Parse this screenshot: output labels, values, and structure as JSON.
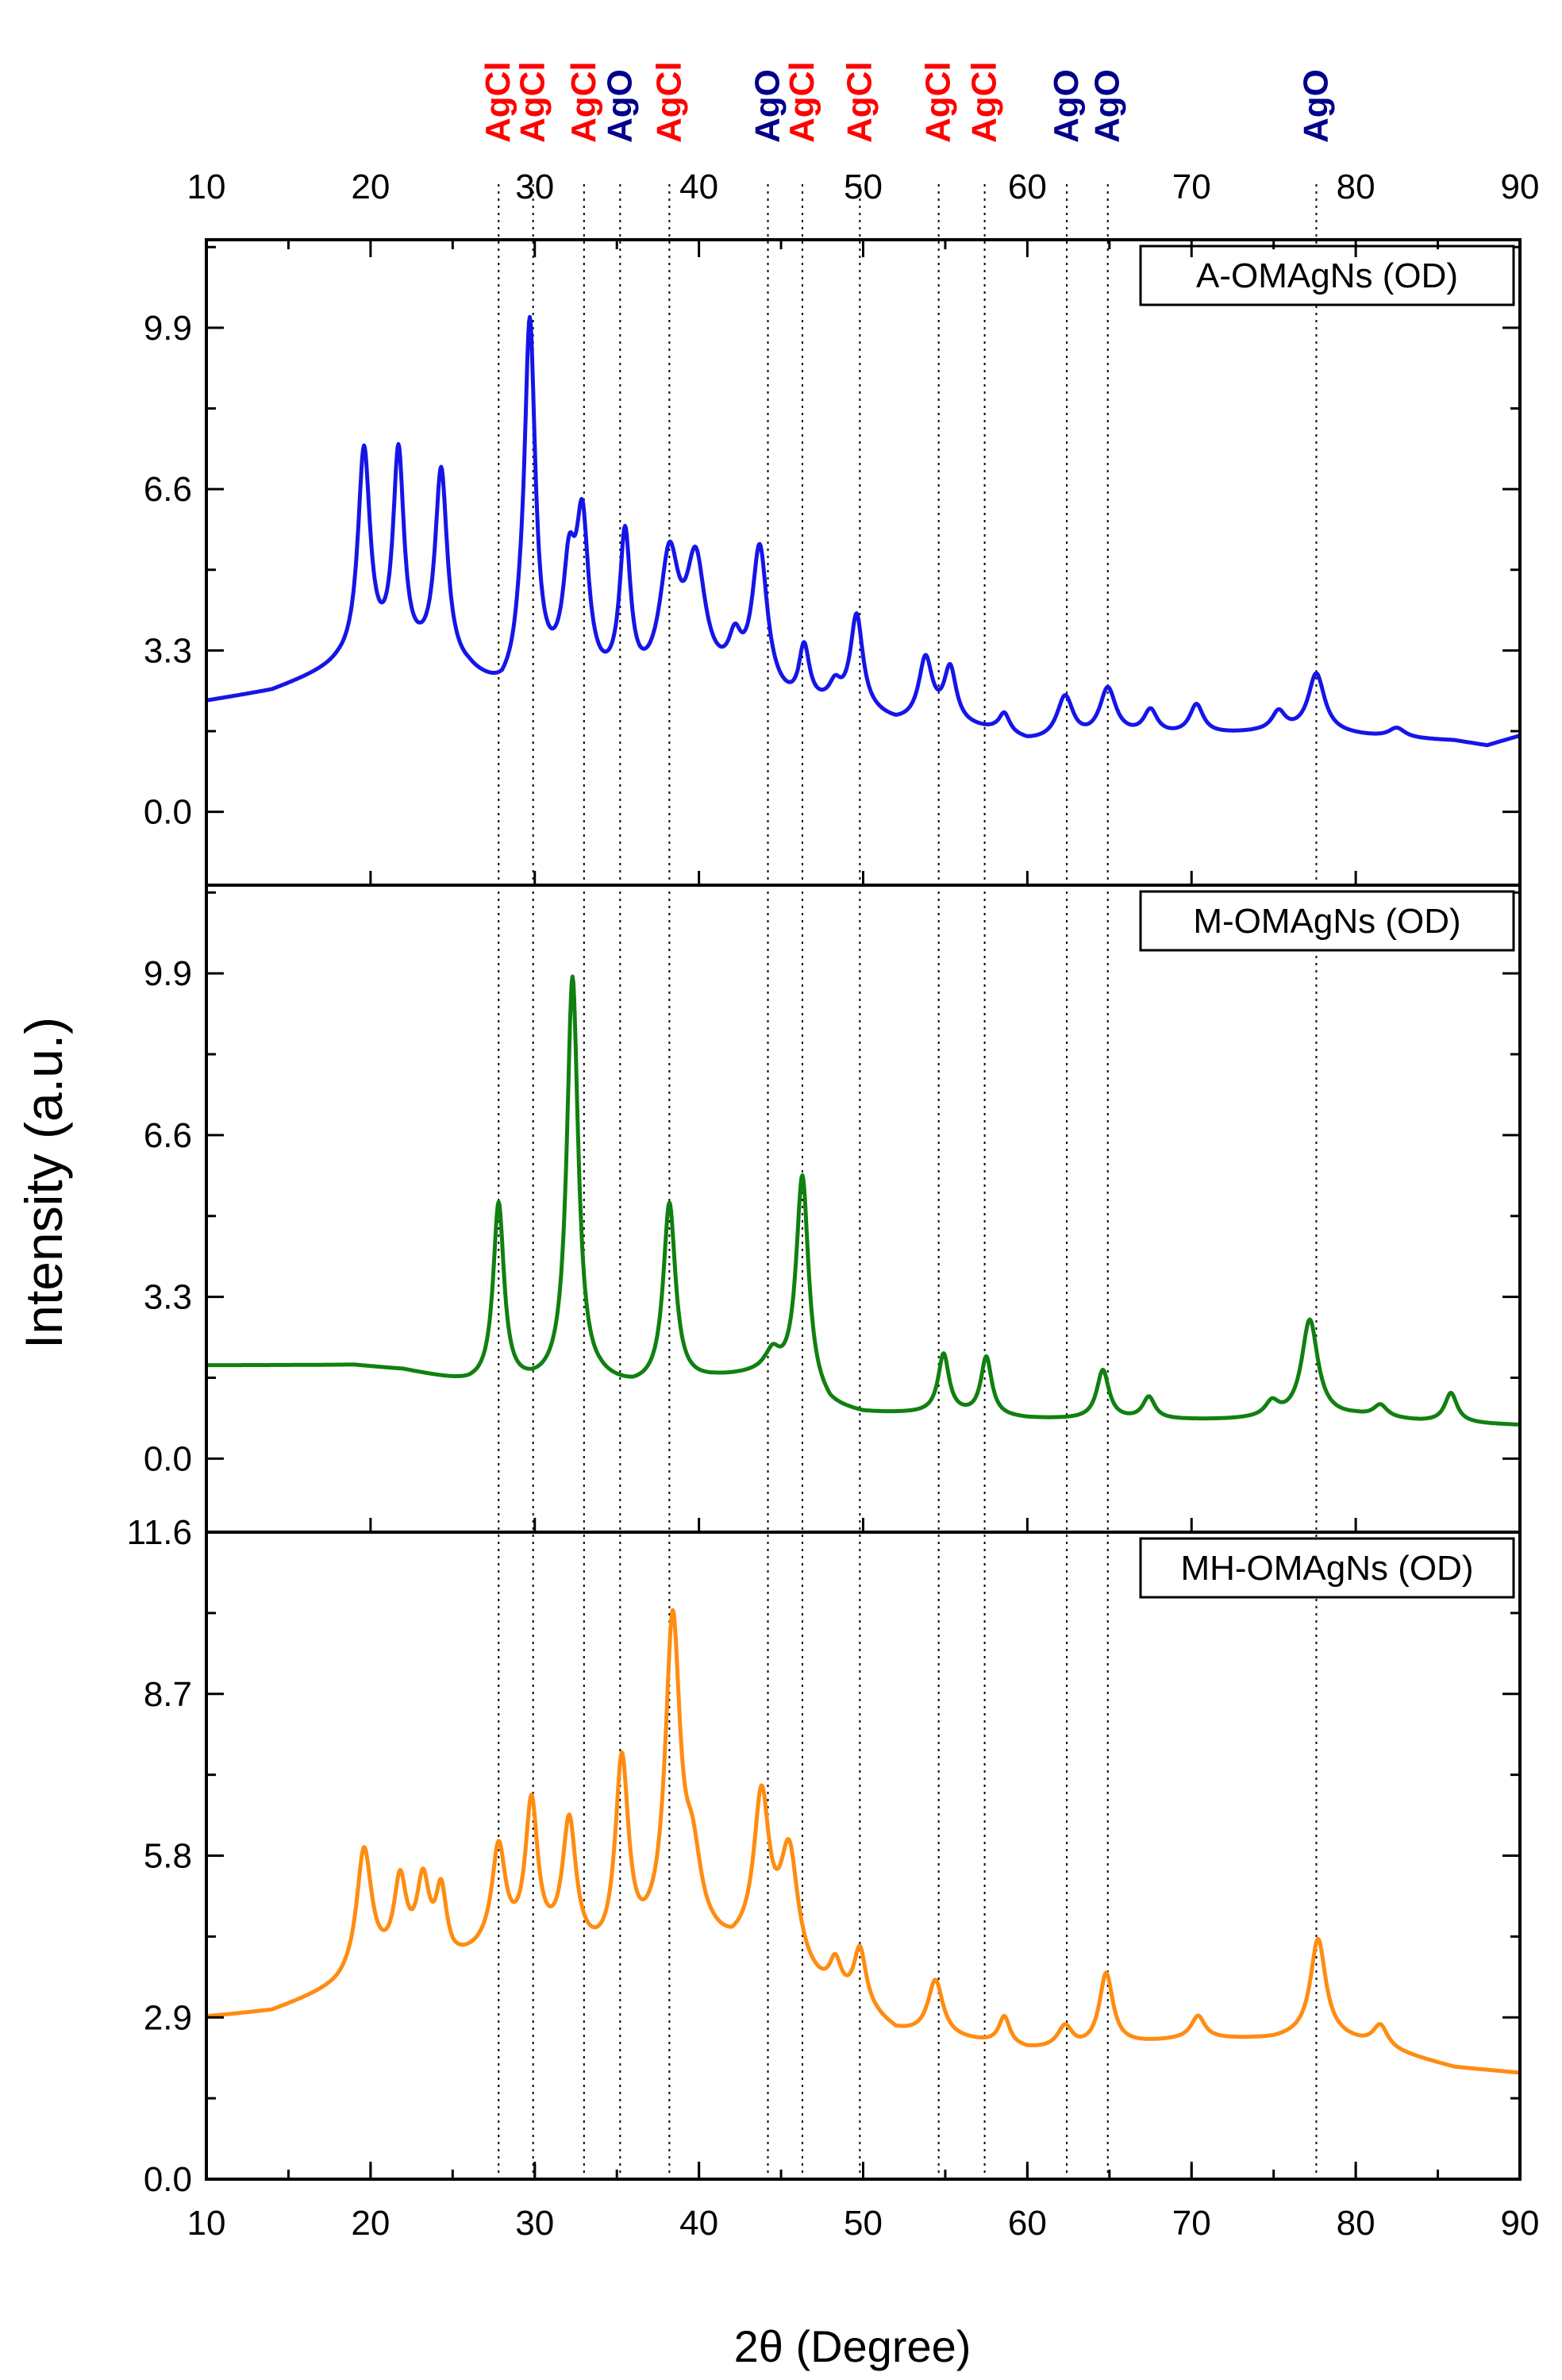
{
  "chart_data": {
    "type": "line",
    "xlabel": "2θ (Degree)",
    "ylabel": "Intensity (a.u.)",
    "xlim": [
      10,
      90
    ],
    "x_ticks": [
      10,
      20,
      30,
      40,
      50,
      60,
      70,
      80,
      90
    ],
    "reference_lines": [
      {
        "x": 27.8,
        "phase": "AgCl"
      },
      {
        "x": 29.9,
        "phase": "AgCl"
      },
      {
        "x": 33.0,
        "phase": "AgCl"
      },
      {
        "x": 35.2,
        "phase": "AgO"
      },
      {
        "x": 38.2,
        "phase": "AgCl"
      },
      {
        "x": 44.2,
        "phase": "AgO"
      },
      {
        "x": 46.3,
        "phase": "AgCl"
      },
      {
        "x": 49.8,
        "phase": "AgCl"
      },
      {
        "x": 54.6,
        "phase": "AgCl"
      },
      {
        "x": 57.4,
        "phase": "AgCl"
      },
      {
        "x": 62.4,
        "phase": "AgO"
      },
      {
        "x": 64.9,
        "phase": "AgO"
      },
      {
        "x": 77.6,
        "phase": "AgO"
      }
    ],
    "phase_colors": {
      "AgCl": "#ff0000",
      "AgO": "#00008b"
    },
    "panels": [
      {
        "name": "A-OMAgNs (OD)",
        "color": "#1515e8",
        "ylim": [
          -1.5,
          11.7
        ],
        "y_ticks": [
          0.0,
          3.3,
          6.6,
          9.9
        ],
        "y_tick_labels": [
          "0.0",
          "3.3",
          "6.6",
          "9.9"
        ],
        "baseline": [
          [
            10,
            2.25
          ],
          [
            14,
            2.45
          ],
          [
            18,
            2.9
          ],
          [
            20,
            3.0
          ],
          [
            23,
            2.95
          ],
          [
            26,
            2.7
          ],
          [
            28,
            2.3
          ],
          [
            30,
            2.5
          ],
          [
            32,
            2.6
          ],
          [
            34,
            2.4
          ],
          [
            36,
            2.3
          ],
          [
            38,
            2.35
          ],
          [
            40,
            2.45
          ],
          [
            42,
            2.5
          ],
          [
            44,
            2.3
          ],
          [
            46,
            2.0
          ],
          [
            48,
            2.1
          ],
          [
            50,
            2.0
          ],
          [
            52,
            1.75
          ],
          [
            55,
            1.75
          ],
          [
            58,
            1.6
          ],
          [
            60,
            1.4
          ],
          [
            63,
            1.4
          ],
          [
            66,
            1.5
          ],
          [
            70,
            1.55
          ],
          [
            74,
            1.6
          ],
          [
            78,
            1.6
          ],
          [
            82,
            1.5
          ],
          [
            86,
            1.45
          ],
          [
            88,
            1.35
          ],
          [
            90,
            1.55
          ]
        ],
        "peaks": [
          {
            "x": 19.6,
            "h": 4.3,
            "w": 0.45
          },
          {
            "x": 21.7,
            "h": 4.2,
            "w": 0.4
          },
          {
            "x": 24.3,
            "h": 4.0,
            "w": 0.45
          },
          {
            "x": 29.1,
            "h": 0.4,
            "w": 0.4
          },
          {
            "x": 29.7,
            "h": 7.3,
            "w": 0.4
          },
          {
            "x": 32.1,
            "h": 2.0,
            "w": 0.45
          },
          {
            "x": 32.9,
            "h": 3.1,
            "w": 0.45
          },
          {
            "x": 35.5,
            "h": 3.1,
            "w": 0.4
          },
          {
            "x": 38.2,
            "h": 2.6,
            "w": 0.7
          },
          {
            "x": 39.8,
            "h": 2.4,
            "w": 0.7
          },
          {
            "x": 42.2,
            "h": 0.7,
            "w": 0.45
          },
          {
            "x": 43.7,
            "h": 2.9,
            "w": 0.55
          },
          {
            "x": 46.4,
            "h": 1.2,
            "w": 0.4
          },
          {
            "x": 48.3,
            "h": 0.35,
            "w": 0.4
          },
          {
            "x": 49.6,
            "h": 1.9,
            "w": 0.45
          },
          {
            "x": 53.8,
            "h": 1.3,
            "w": 0.5
          },
          {
            "x": 55.3,
            "h": 1.1,
            "w": 0.45
          },
          {
            "x": 58.6,
            "h": 0.4,
            "w": 0.4
          },
          {
            "x": 62.3,
            "h": 0.9,
            "w": 0.6
          },
          {
            "x": 64.9,
            "h": 1.0,
            "w": 0.6
          },
          {
            "x": 67.5,
            "h": 0.5,
            "w": 0.5
          },
          {
            "x": 70.3,
            "h": 0.6,
            "w": 0.5
          },
          {
            "x": 75.3,
            "h": 0.4,
            "w": 0.5
          },
          {
            "x": 77.6,
            "h": 1.2,
            "w": 0.6
          },
          {
            "x": 82.5,
            "h": 0.2,
            "w": 0.6
          }
        ]
      },
      {
        "name": "M-OMAgNs (OD)",
        "color": "#108010",
        "ylim": [
          -1.5,
          11.7
        ],
        "y_ticks": [
          0.0,
          3.3,
          6.6,
          9.9
        ],
        "y_tick_labels": [
          "0.0",
          "3.3",
          "6.6",
          "9.9"
        ],
        "baseline": [
          [
            10,
            1.9
          ],
          [
            19,
            1.9
          ],
          [
            22,
            1.8
          ],
          [
            24,
            1.65
          ],
          [
            26,
            1.5
          ],
          [
            28,
            1.45
          ],
          [
            30,
            1.45
          ],
          [
            34,
            1.5
          ],
          [
            36,
            1.4
          ],
          [
            38,
            1.45
          ],
          [
            41,
            1.6
          ],
          [
            44,
            1.7
          ],
          [
            46,
            1.5
          ],
          [
            48,
            1.0
          ],
          [
            50,
            0.9
          ],
          [
            55,
            0.9
          ],
          [
            57,
            0.85
          ],
          [
            60,
            0.8
          ],
          [
            66,
            0.78
          ],
          [
            72,
            0.78
          ],
          [
            76,
            0.8
          ],
          [
            80,
            0.85
          ],
          [
            84,
            0.75
          ],
          [
            88,
            0.7
          ],
          [
            90,
            0.68
          ]
        ],
        "peaks": [
          {
            "x": 27.8,
            "h": 3.7,
            "w": 0.4
          },
          {
            "x": 32.3,
            "h": 8.3,
            "w": 0.42
          },
          {
            "x": 38.2,
            "h": 3.7,
            "w": 0.45
          },
          {
            "x": 44.5,
            "h": 0.4,
            "w": 0.5
          },
          {
            "x": 46.3,
            "h": 4.3,
            "w": 0.45
          },
          {
            "x": 54.9,
            "h": 1.2,
            "w": 0.4
          },
          {
            "x": 57.5,
            "h": 1.2,
            "w": 0.4
          },
          {
            "x": 64.6,
            "h": 1.0,
            "w": 0.45
          },
          {
            "x": 67.4,
            "h": 0.45,
            "w": 0.45
          },
          {
            "x": 74.9,
            "h": 0.3,
            "w": 0.5
          },
          {
            "x": 77.2,
            "h": 2.0,
            "w": 0.6
          },
          {
            "x": 81.5,
            "h": 0.25,
            "w": 0.5
          },
          {
            "x": 85.8,
            "h": 0.6,
            "w": 0.45
          }
        ]
      },
      {
        "name": "MH-OMAgNs (OD)",
        "color": "#ff8c10",
        "ylim": [
          0.0,
          11.6
        ],
        "y_ticks": [
          0.0,
          2.9,
          5.8,
          8.7,
          11.6
        ],
        "y_tick_labels": [
          "0.0",
          "2.9",
          "5.8",
          "8.7",
          "11.6"
        ],
        "baseline": [
          [
            10,
            2.9
          ],
          [
            14,
            3.0
          ],
          [
            18,
            3.4
          ],
          [
            20,
            3.7
          ],
          [
            23,
            3.9
          ],
          [
            25,
            3.8
          ],
          [
            27,
            4.0
          ],
          [
            30,
            4.1
          ],
          [
            33,
            3.9
          ],
          [
            35,
            3.7
          ],
          [
            37,
            4.0
          ],
          [
            40,
            4.2
          ],
          [
            42,
            4.0
          ],
          [
            44,
            4.2
          ],
          [
            46,
            3.6
          ],
          [
            48,
            3.2
          ],
          [
            50,
            3.0
          ],
          [
            52,
            2.6
          ],
          [
            55,
            2.5
          ],
          [
            58,
            2.4
          ],
          [
            60,
            2.3
          ],
          [
            63,
            2.3
          ],
          [
            66,
            2.4
          ],
          [
            70,
            2.5
          ],
          [
            75,
            2.5
          ],
          [
            78,
            2.6
          ],
          [
            82,
            2.3
          ],
          [
            86,
            2.0
          ],
          [
            90,
            1.9
          ]
        ],
        "peaks": [
          {
            "x": 19.6,
            "h": 2.2,
            "w": 0.55
          },
          {
            "x": 21.8,
            "h": 1.4,
            "w": 0.45
          },
          {
            "x": 23.2,
            "h": 1.3,
            "w": 0.45
          },
          {
            "x": 24.3,
            "h": 1.2,
            "w": 0.4
          },
          {
            "x": 27.8,
            "h": 1.8,
            "w": 0.5
          },
          {
            "x": 29.8,
            "h": 2.5,
            "w": 0.45
          },
          {
            "x": 32.1,
            "h": 2.3,
            "w": 0.5
          },
          {
            "x": 35.3,
            "h": 3.6,
            "w": 0.5
          },
          {
            "x": 38.4,
            "h": 5.7,
            "w": 0.55
          },
          {
            "x": 39.6,
            "h": 1.2,
            "w": 0.6
          },
          {
            "x": 43.8,
            "h": 2.5,
            "w": 0.55
          },
          {
            "x": 45.5,
            "h": 2.0,
            "w": 0.65
          },
          {
            "x": 48.3,
            "h": 0.6,
            "w": 0.45
          },
          {
            "x": 49.8,
            "h": 1.0,
            "w": 0.45
          },
          {
            "x": 54.4,
            "h": 1.0,
            "w": 0.55
          },
          {
            "x": 58.6,
            "h": 0.5,
            "w": 0.4
          },
          {
            "x": 62.3,
            "h": 0.4,
            "w": 0.55
          },
          {
            "x": 64.8,
            "h": 1.3,
            "w": 0.5
          },
          {
            "x": 70.4,
            "h": 0.4,
            "w": 0.5
          },
          {
            "x": 77.7,
            "h": 1.7,
            "w": 0.55
          },
          {
            "x": 81.5,
            "h": 0.4,
            "w": 0.55
          }
        ]
      }
    ]
  }
}
